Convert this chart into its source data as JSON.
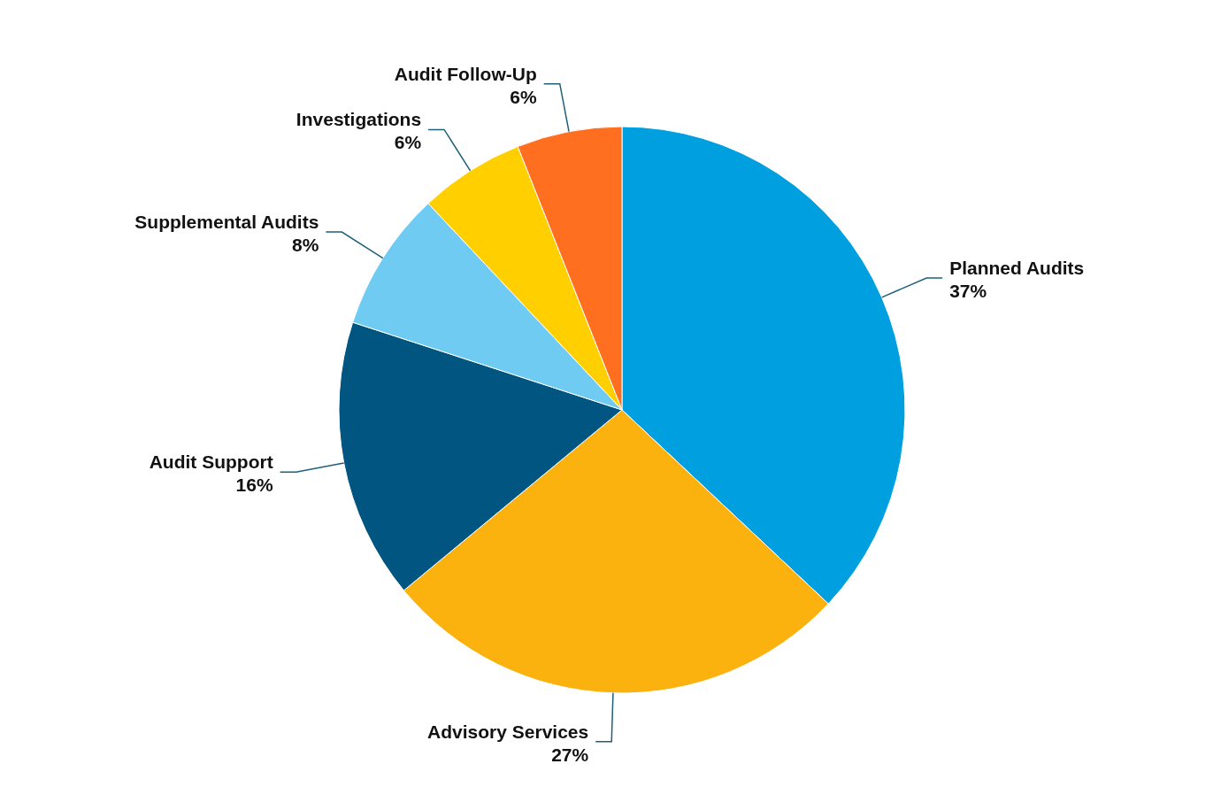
{
  "chart_data": {
    "type": "pie",
    "categories": [
      "Planned Audits",
      "Advisory Services",
      "Audit Support",
      "Supplemental Audits",
      "Investigations",
      "Audit Follow-Up"
    ],
    "values": [
      37,
      27,
      16,
      8,
      6,
      6
    ],
    "value_labels": [
      "37%",
      "27%",
      "16%",
      "8%",
      "6%",
      "6%"
    ],
    "colors": [
      "#009fe0",
      "#fbb20f",
      "#005581",
      "#70cbf2",
      "#ffcf00",
      "#ff6f1f"
    ],
    "legend": false
  }
}
